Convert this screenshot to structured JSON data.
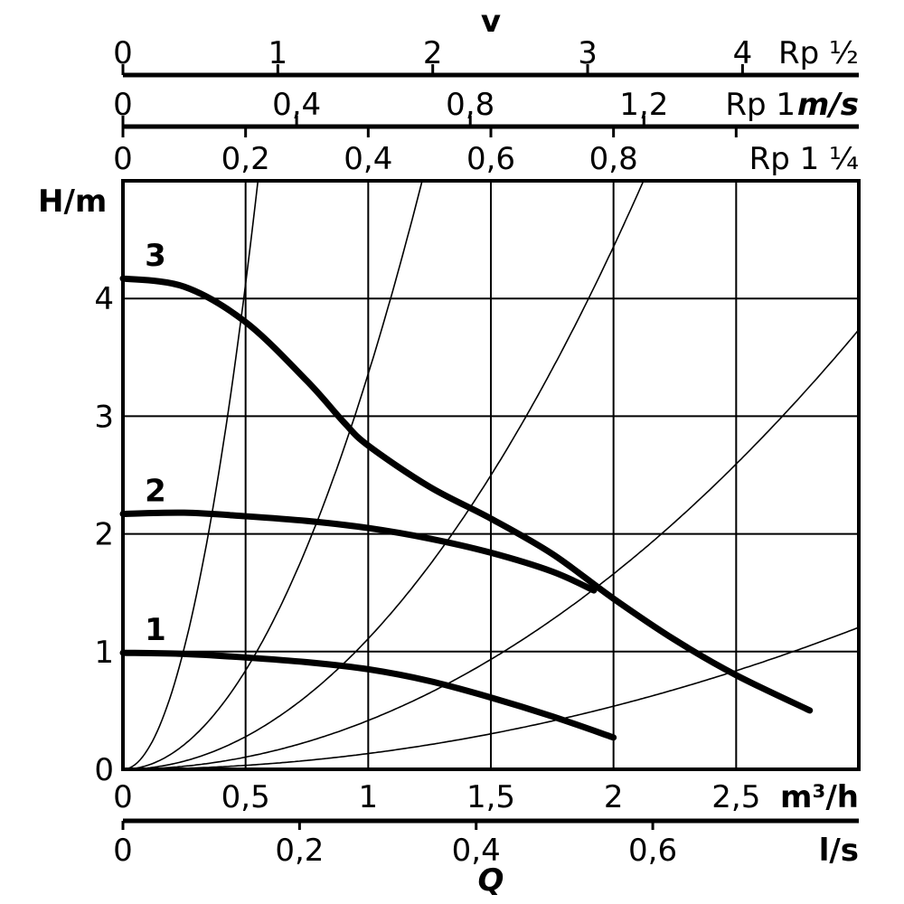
{
  "chart_data": {
    "type": "line",
    "title": "",
    "xlabel": "Q",
    "x_unit": "m³/h",
    "ylabel": "H/m",
    "xlim": [
      0,
      3
    ],
    "ylim": [
      0,
      5
    ],
    "grid": true,
    "x_ticks": [
      "0",
      "0,5",
      "1",
      "1,5",
      "2",
      "2,5"
    ],
    "x_tick_values": [
      0,
      0.5,
      1,
      1.5,
      2,
      2.5
    ],
    "y_ticks": [
      "0",
      "1",
      "2",
      "3",
      "4"
    ],
    "y_tick_values": [
      0,
      1,
      2,
      3,
      4
    ],
    "ls_axis": {
      "unit": "l/s",
      "ticks": [
        "0",
        "0,2",
        "0,4",
        "0,6"
      ],
      "values": [
        0,
        0.2,
        0.4,
        0.6
      ]
    },
    "velocity_label": "v",
    "velocity_unit": "m/s",
    "velocity_axes": [
      {
        "name": "Rp ½",
        "ticks": [
          "0",
          "1",
          "2",
          "3",
          "4"
        ],
        "values": [
          0,
          1,
          2,
          3,
          4
        ],
        "q_per_unit": 0.6315
      },
      {
        "name": "Rp 1",
        "ticks": [
          "0",
          "0,4",
          "0,8",
          "1,2"
        ],
        "values": [
          0,
          0.4,
          0.8,
          1.2
        ],
        "q_per_unit": 1.77
      },
      {
        "name": "Rp 1 ¼",
        "ticks": [
          "0",
          "0,2",
          "0,4",
          "0,6",
          "0,8"
        ],
        "values": [
          0,
          0.2,
          0.4,
          0.6,
          0.8
        ],
        "q_per_unit": 2.5
      }
    ],
    "series": [
      {
        "name": "1",
        "x": [
          0,
          0.25,
          0.5,
          0.75,
          1,
          1.25,
          1.5,
          1.75,
          2
        ],
        "y": [
          0.99,
          0.98,
          0.95,
          0.91,
          0.85,
          0.75,
          0.61,
          0.45,
          0.27
        ]
      },
      {
        "name": "2",
        "x": [
          0,
          0.25,
          0.5,
          0.75,
          1,
          1.25,
          1.5,
          1.75,
          1.92
        ],
        "y": [
          2.17,
          2.18,
          2.15,
          2.11,
          2.05,
          1.96,
          1.84,
          1.68,
          1.52
        ]
      },
      {
        "name": "3",
        "x": [
          0,
          0.25,
          0.5,
          0.75,
          0.9,
          1,
          1.25,
          1.5,
          1.75,
          2,
          2.25,
          2.5,
          2.8
        ],
        "y": [
          4.17,
          4.1,
          3.8,
          3.3,
          2.95,
          2.75,
          2.4,
          2.13,
          1.83,
          1.45,
          1.1,
          0.8,
          0.5
        ]
      }
    ],
    "system_curves_k": [
      16.5,
      3.36,
      1.11,
      0.415,
      0.134
    ]
  }
}
